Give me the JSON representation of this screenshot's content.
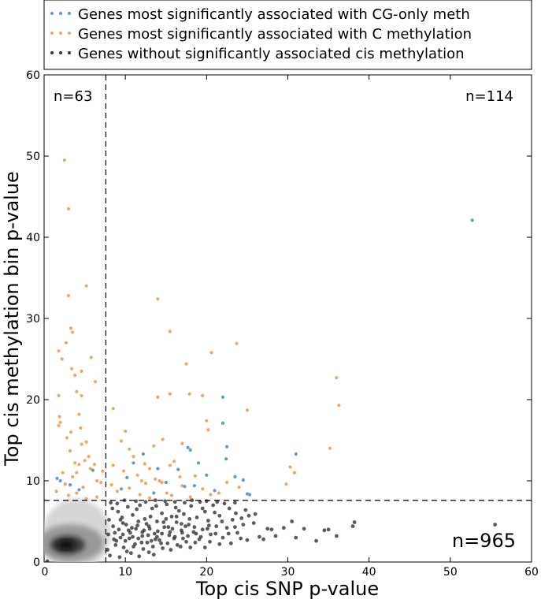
{
  "chart_data": {
    "type": "scatter",
    "title": "",
    "xlabel": "Top cis SNP p-value",
    "ylabel": "Top cis methylation bin p-value",
    "xlim": [
      0,
      60
    ],
    "ylim": [
      0,
      60
    ],
    "xticks": [
      "0",
      "10",
      "20",
      "30",
      "40",
      "50",
      "60"
    ],
    "yticks": [
      "0",
      "10",
      "20",
      "30",
      "40",
      "50",
      "60"
    ],
    "grid": false,
    "legend_position": "top, above plot",
    "thresholds": {
      "x": 7.6,
      "y": 7.6
    },
    "annotations": [
      {
        "text": "n=63",
        "region": "top-left"
      },
      {
        "text": "n=114",
        "region": "top-right"
      },
      {
        "text": "n=965",
        "region": "bottom-right"
      }
    ],
    "series": [
      {
        "name": "Genes most significantly associated with CG-only meth",
        "color": "#5b9bd5",
        "points": [
          [
            52.7,
            42.1
          ],
          [
            22.0,
            20.3
          ],
          [
            22.0,
            17.1
          ],
          [
            31.0,
            13.3
          ],
          [
            24.5,
            10.1
          ],
          [
            22.5,
            14.2
          ],
          [
            22.4,
            12.7
          ],
          [
            17.7,
            14.1
          ],
          [
            18.0,
            13.8
          ],
          [
            19.0,
            12.2
          ],
          [
            16.5,
            11.4
          ],
          [
            20.0,
            10.7
          ],
          [
            23.5,
            10.5
          ],
          [
            25.0,
            8.4
          ],
          [
            25.3,
            8.3
          ],
          [
            10.2,
            10.4
          ],
          [
            11.0,
            12.2
          ],
          [
            12.2,
            13.3
          ],
          [
            14.0,
            11.5
          ],
          [
            15.0,
            9.8
          ],
          [
            17.3,
            9.3
          ],
          [
            18.5,
            9.4
          ],
          [
            21.0,
            8.8
          ],
          [
            9.5,
            9.0
          ],
          [
            2.0,
            10.0
          ],
          [
            3.2,
            9.5
          ],
          [
            4.3,
            8.9
          ],
          [
            6.0,
            11.3
          ],
          [
            1.6,
            10.3
          ],
          [
            13.5,
            8.5
          ]
        ]
      },
      {
        "name": "Genes most significantly associated with C methylation",
        "color": "#f4a65e",
        "points": [
          [
            2.5,
            49.5
          ],
          [
            3.0,
            43.5
          ],
          [
            5.2,
            34.0
          ],
          [
            3.0,
            32.8
          ],
          [
            1.8,
            26.0
          ],
          [
            3.3,
            28.8
          ],
          [
            3.5,
            28.3
          ],
          [
            2.7,
            27.0
          ],
          [
            2.2,
            25.0
          ],
          [
            5.8,
            25.2
          ],
          [
            3.4,
            23.8
          ],
          [
            3.8,
            23.0
          ],
          [
            4.6,
            23.5
          ],
          [
            6.3,
            22.2
          ],
          [
            1.8,
            20.5
          ],
          [
            4.0,
            21.0
          ],
          [
            4.6,
            20.5
          ],
          [
            1.9,
            17.9
          ],
          [
            4.3,
            18.2
          ],
          [
            2.0,
            17.2
          ],
          [
            1.8,
            16.8
          ],
          [
            3.3,
            16.0
          ],
          [
            4.5,
            16.5
          ],
          [
            5.2,
            14.8
          ],
          [
            2.8,
            15.3
          ],
          [
            4.6,
            14.5
          ],
          [
            5.5,
            13.0
          ],
          [
            3.2,
            13.7
          ],
          [
            3.8,
            12.2
          ],
          [
            4.3,
            12.0
          ],
          [
            5.0,
            12.5
          ],
          [
            2.3,
            11.0
          ],
          [
            4.0,
            11.0
          ],
          [
            5.7,
            11.5
          ],
          [
            6.5,
            10.0
          ],
          [
            7.0,
            9.8
          ],
          [
            2.6,
            9.6
          ],
          [
            3.5,
            10.5
          ],
          [
            4.8,
            9.2
          ],
          [
            1.5,
            8.7
          ],
          [
            6.5,
            8.0
          ],
          [
            3.0,
            8.2
          ],
          [
            4.0,
            8.5
          ],
          [
            7.2,
            11.2
          ],
          [
            6.2,
            12.0
          ],
          [
            5.2,
            7.8
          ],
          [
            14.0,
            32.4
          ],
          [
            15.5,
            28.4
          ],
          [
            23.7,
            26.9
          ],
          [
            20.6,
            25.8
          ],
          [
            17.5,
            24.4
          ],
          [
            36.0,
            22.7
          ],
          [
            36.3,
            19.3
          ],
          [
            15.5,
            20.7
          ],
          [
            14.0,
            20.3
          ],
          [
            20.0,
            17.4
          ],
          [
            17.9,
            20.7
          ],
          [
            19.5,
            20.5
          ],
          [
            25.0,
            18.7
          ],
          [
            8.5,
            18.9
          ],
          [
            10.0,
            16.1
          ],
          [
            20.2,
            16.3
          ],
          [
            17.0,
            14.6
          ],
          [
            9.5,
            14.9
          ],
          [
            10.5,
            13.9
          ],
          [
            11.0,
            13.0
          ],
          [
            13.5,
            14.3
          ],
          [
            14.6,
            15.1
          ],
          [
            12.4,
            12.1
          ],
          [
            13.0,
            11.5
          ],
          [
            15.5,
            11.9
          ],
          [
            16.0,
            12.4
          ],
          [
            8.5,
            11.9
          ],
          [
            9.8,
            11.2
          ],
          [
            11.5,
            10.7
          ],
          [
            12.0,
            10.0
          ],
          [
            13.7,
            10.2
          ],
          [
            14.5,
            9.8
          ],
          [
            15.1,
            8.5
          ],
          [
            16.7,
            10.5
          ],
          [
            17.0,
            9.4
          ],
          [
            18.6,
            10.6
          ],
          [
            19.5,
            9.0
          ],
          [
            21.5,
            8.5
          ],
          [
            22.5,
            9.8
          ],
          [
            24.0,
            9.2
          ],
          [
            29.8,
            9.6
          ],
          [
            30.3,
            11.7
          ],
          [
            30.8,
            11.0
          ],
          [
            35.2,
            14.0
          ],
          [
            8.3,
            9.5
          ],
          [
            9.0,
            8.7
          ],
          [
            10.5,
            9.1
          ],
          [
            11.8,
            8.3
          ],
          [
            13.0,
            7.9
          ],
          [
            15.7,
            8.2
          ],
          [
            18.0,
            8.0
          ],
          [
            20.5,
            8.3
          ],
          [
            12.5,
            9.7
          ],
          [
            14.2,
            10.0
          ]
        ]
      },
      {
        "name": "Genes without significantly associated cis methylation",
        "color": "#333333",
        "points": [
          [
            55.5,
            4.6
          ],
          [
            38.2,
            4.9
          ],
          [
            38.0,
            4.4
          ],
          [
            36.0,
            3.2
          ],
          [
            33.5,
            2.6
          ],
          [
            31.0,
            3.0
          ],
          [
            30.5,
            5.0
          ],
          [
            29.5,
            4.2
          ],
          [
            28.0,
            4.0
          ],
          [
            27.5,
            4.1
          ],
          [
            26.5,
            3.1
          ],
          [
            25.8,
            4.8
          ],
          [
            25.2,
            5.7
          ],
          [
            24.8,
            6.4
          ],
          [
            24.5,
            4.6
          ],
          [
            23.8,
            3.6
          ],
          [
            23.2,
            5.2
          ],
          [
            22.8,
            6.6
          ],
          [
            22.5,
            4.2
          ],
          [
            22.0,
            3.0
          ],
          [
            21.6,
            5.7
          ],
          [
            21.2,
            4.4
          ],
          [
            20.8,
            7.0
          ],
          [
            20.5,
            3.4
          ],
          [
            20.2,
            5.1
          ],
          [
            19.8,
            6.2
          ],
          [
            19.5,
            4.0
          ],
          [
            19.1,
            2.8
          ],
          [
            18.8,
            5.5
          ],
          [
            18.4,
            3.7
          ],
          [
            18.1,
            6.9
          ],
          [
            17.8,
            4.6
          ],
          [
            17.5,
            2.5
          ],
          [
            17.2,
            5.9
          ],
          [
            16.9,
            3.9
          ],
          [
            16.6,
            6.3
          ],
          [
            16.3,
            4.9
          ],
          [
            16.0,
            2.9
          ],
          [
            15.7,
            5.6
          ],
          [
            15.4,
            3.3
          ],
          [
            15.1,
            7.1
          ],
          [
            14.8,
            4.3
          ],
          [
            14.5,
            6.0
          ],
          [
            14.2,
            2.7
          ],
          [
            13.9,
            5.0
          ],
          [
            13.6,
            3.5
          ],
          [
            13.3,
            6.6
          ],
          [
            13.0,
            4.1
          ],
          [
            12.7,
            2.4
          ],
          [
            12.4,
            5.3
          ],
          [
            12.1,
            3.2
          ],
          [
            11.8,
            7.0
          ],
          [
            11.5,
            4.5
          ],
          [
            11.2,
            2.2
          ],
          [
            10.9,
            5.8
          ],
          [
            10.6,
            3.6
          ],
          [
            10.3,
            6.8
          ],
          [
            10.0,
            2.6
          ],
          [
            9.7,
            4.8
          ],
          [
            9.4,
            3.0
          ],
          [
            9.1,
            6.2
          ],
          [
            8.8,
            2.1
          ],
          [
            8.5,
            4.4
          ],
          [
            8.2,
            7.3
          ],
          [
            7.9,
            3.4
          ],
          [
            8.0,
            5.2
          ],
          [
            8.6,
            2.8
          ],
          [
            9.2,
            4.0
          ],
          [
            9.8,
            1.8
          ],
          [
            10.4,
            3.9
          ],
          [
            11.0,
            1.9
          ],
          [
            11.6,
            2.9
          ],
          [
            12.2,
            1.6
          ],
          [
            12.8,
            3.3
          ],
          [
            13.4,
            1.9
          ],
          [
            14.0,
            3.8
          ],
          [
            14.6,
            1.7
          ],
          [
            15.2,
            2.3
          ],
          [
            15.8,
            4.1
          ],
          [
            16.4,
            2.1
          ],
          [
            17.0,
            3.6
          ],
          [
            7.8,
            1.5
          ],
          [
            8.4,
            6.6
          ],
          [
            9.0,
            7.2
          ],
          [
            9.6,
            5.5
          ],
          [
            10.2,
            1.3
          ],
          [
            10.8,
            4.2
          ],
          [
            11.4,
            6.5
          ],
          [
            12.0,
            2.4
          ],
          [
            12.6,
            4.7
          ],
          [
            13.2,
            2.6
          ],
          [
            13.8,
            6.9
          ],
          [
            14.4,
            2.3
          ],
          [
            15.0,
            5.3
          ],
          [
            15.6,
            1.5
          ],
          [
            16.2,
            6.7
          ],
          [
            16.8,
            1.9
          ],
          [
            17.4,
            4.4
          ],
          [
            18.0,
            1.8
          ],
          [
            18.6,
            2.4
          ],
          [
            19.2,
            7.4
          ],
          [
            19.8,
            1.8
          ],
          [
            20.4,
            2.5
          ],
          [
            21.0,
            6.1
          ],
          [
            21.6,
            2.2
          ],
          [
            22.2,
            7.2
          ],
          [
            23.0,
            2.3
          ],
          [
            23.6,
            6.0
          ],
          [
            24.2,
            2.9
          ],
          [
            25.0,
            2.7
          ],
          [
            26.0,
            5.9
          ],
          [
            27.0,
            2.8
          ],
          [
            28.5,
            3.2
          ],
          [
            32.0,
            4.1
          ],
          [
            34.5,
            3.9
          ],
          [
            35.0,
            4.0
          ],
          [
            0.4,
            0.1
          ],
          [
            8.1,
            0.8
          ],
          [
            9.3,
            0.6
          ],
          [
            11.7,
            0.7
          ],
          [
            13.5,
            0.9
          ],
          [
            12.9,
            1.2
          ],
          [
            10.7,
            1.1
          ],
          [
            9.9,
            7.6
          ],
          [
            11.3,
            7.5
          ],
          [
            12.5,
            7.4
          ],
          [
            13.7,
            7.6
          ],
          [
            14.9,
            7.5
          ],
          [
            16.1,
            7.4
          ],
          [
            17.3,
            7.3
          ],
          [
            18.2,
            7.6
          ],
          [
            20.0,
            7.5
          ],
          [
            21.3,
            7.4
          ],
          [
            23.5,
            7.3
          ],
          [
            8.7,
            3.6
          ],
          [
            9.4,
            5.2
          ],
          [
            10.1,
            4.6
          ],
          [
            10.9,
            3.1
          ],
          [
            11.6,
            5.0
          ],
          [
            12.3,
            3.9
          ],
          [
            13.1,
            5.6
          ],
          [
            13.9,
            3.1
          ],
          [
            14.7,
            4.9
          ],
          [
            15.5,
            3.7
          ],
          [
            16.3,
            5.6
          ],
          [
            17.1,
            2.9
          ],
          [
            17.9,
            5.3
          ],
          [
            18.7,
            3.5
          ],
          [
            19.5,
            6.6
          ],
          [
            20.3,
            4.5
          ],
          [
            21.1,
            3.5
          ],
          [
            21.9,
            5.0
          ],
          [
            22.7,
            3.5
          ],
          [
            23.5,
            4.3
          ],
          [
            24.3,
            5.4
          ],
          [
            8.9,
            2.6
          ],
          [
            9.7,
            3.4
          ],
          [
            10.5,
            2.9
          ],
          [
            11.3,
            4.1
          ],
          [
            12.1,
            3.7
          ],
          [
            12.9,
            4.4
          ],
          [
            13.7,
            2.8
          ],
          [
            14.5,
            3.5
          ],
          [
            15.3,
            4.3
          ],
          [
            16.1,
            3.1
          ],
          [
            16.9,
            4.7
          ],
          [
            17.7,
            3.2
          ],
          [
            18.5,
            4.3
          ],
          [
            19.3,
            3.1
          ],
          [
            20.1,
            4.1
          ]
        ],
        "density_region": {
          "x": [
            0,
            7.6
          ],
          "y": [
            0,
            7.6
          ],
          "peak": [
            2.5,
            2.5
          ]
        }
      }
    ]
  }
}
